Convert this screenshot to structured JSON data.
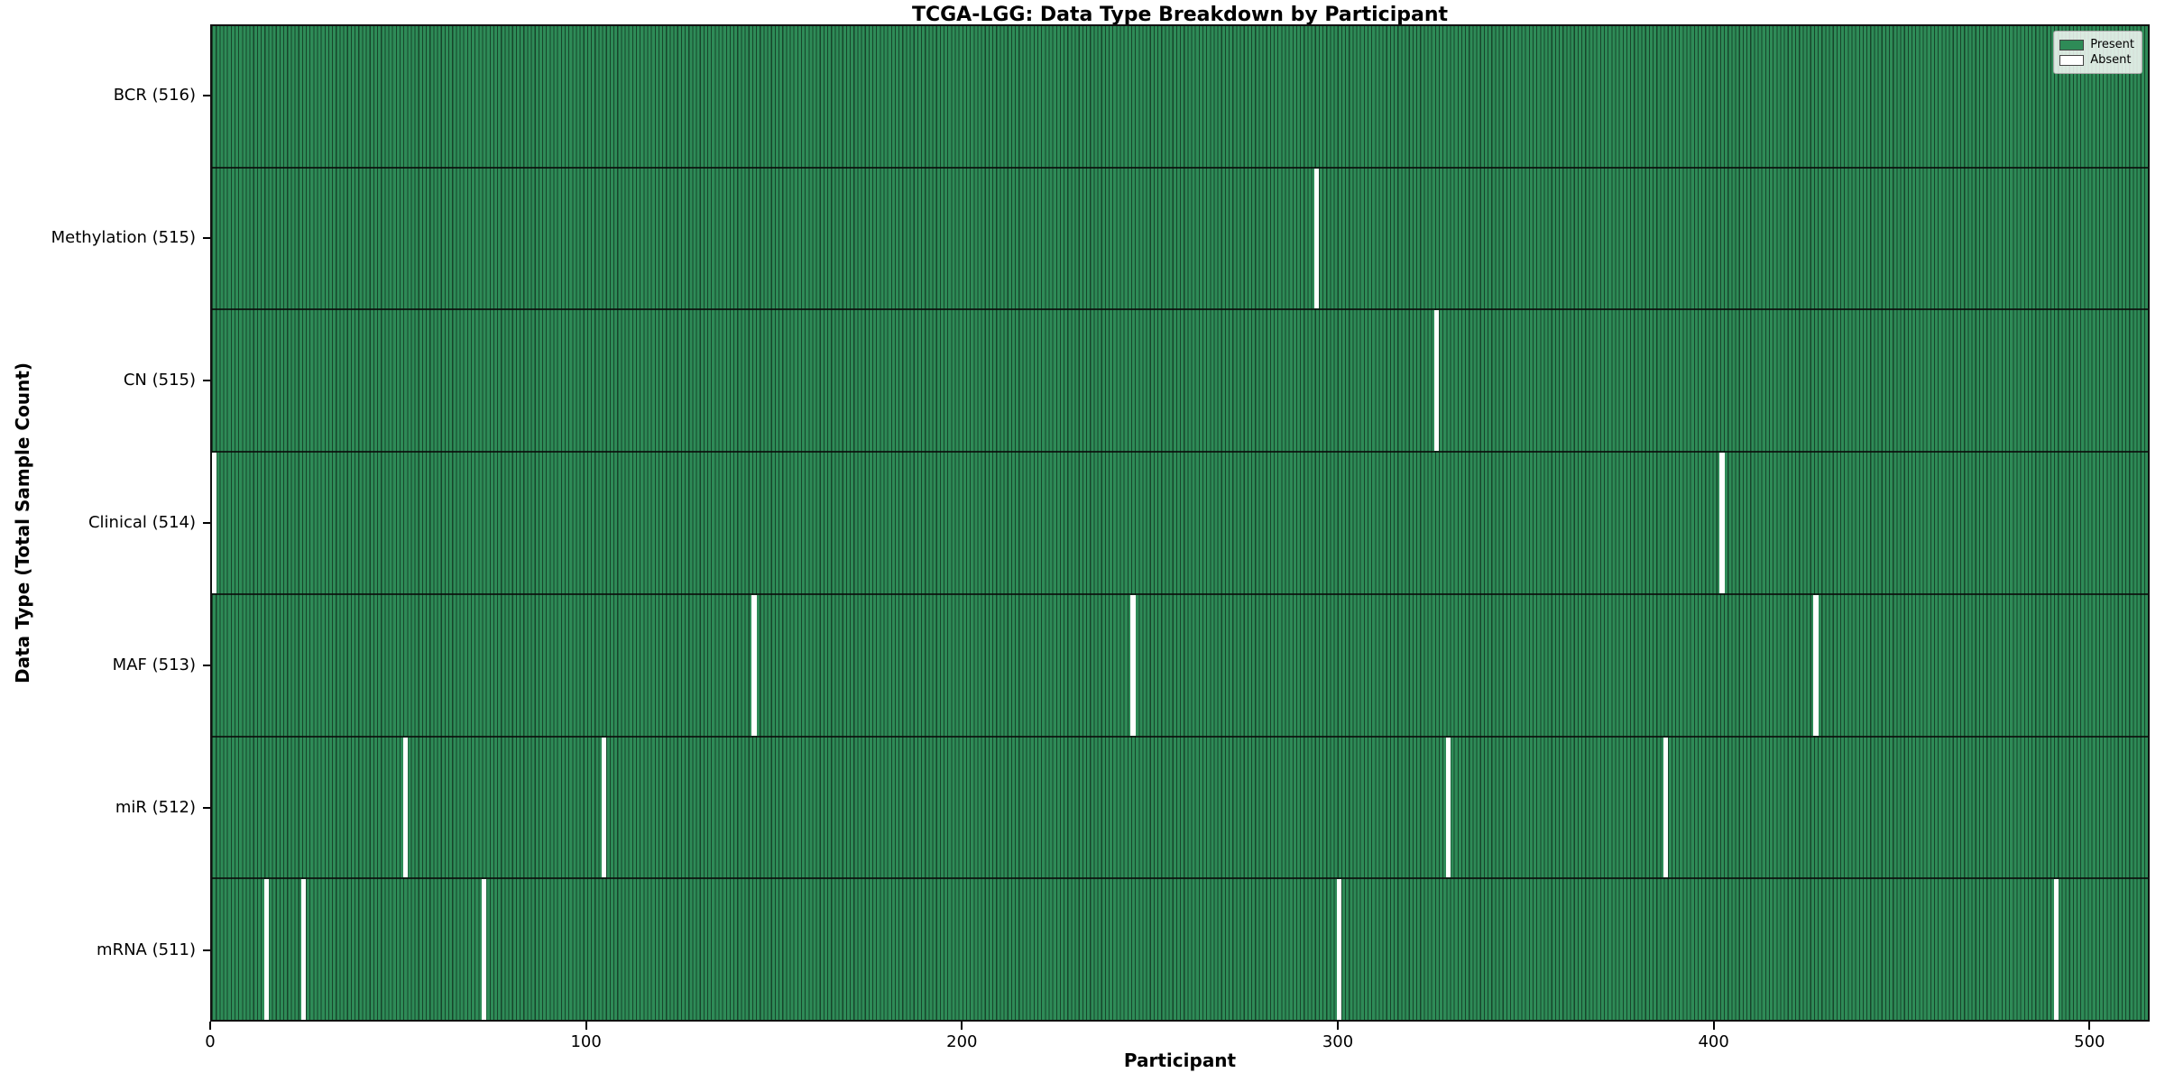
{
  "title": "TCGA-LGG: Data Type Breakdown by Participant",
  "colors": {
    "present": "#2e8b57",
    "absent": "#ffffff",
    "column_edge": "rgba(0,0,0,0.5)",
    "row_divider": "rgba(10,10,10,0.8)",
    "frame": "#111111"
  },
  "chart_data": {
    "type": "heatmap",
    "title": "TCGA-LGG: Data Type Breakdown by Participant",
    "xlabel": "Participant",
    "ylabel": "Data Type (Total Sample Count)",
    "n_participants": 516,
    "xlim": [
      0,
      516
    ],
    "x_ticks": [
      0,
      100,
      200,
      300,
      400,
      500
    ],
    "grid": false,
    "legend_position": "upper right",
    "legend": [
      {
        "label": "Present",
        "color": "#2e8b57"
      },
      {
        "label": "Absent",
        "color": "#ffffff"
      }
    ],
    "rows": [
      {
        "label": "BCR (516)",
        "data_type": "BCR",
        "total": 516,
        "absent_participants": []
      },
      {
        "label": "Methylation (515)",
        "data_type": "Methylation",
        "total": 515,
        "absent_participants": [
          294
        ]
      },
      {
        "label": "CN (515)",
        "data_type": "CN",
        "total": 515,
        "absent_participants": [
          326
        ]
      },
      {
        "label": "Clinical (514)",
        "data_type": "Clinical",
        "total": 514,
        "absent_participants": [
          0,
          402
        ]
      },
      {
        "label": "MAF (513)",
        "data_type": "MAF",
        "total": 513,
        "absent_participants": [
          144,
          245,
          427
        ]
      },
      {
        "label": "miR (512)",
        "data_type": "miR",
        "total": 512,
        "absent_participants": [
          51,
          104,
          329,
          387
        ]
      },
      {
        "label": "mRNA (511)",
        "data_type": "mRNA",
        "total": 511,
        "absent_participants": [
          14,
          24,
          72,
          300,
          491
        ]
      }
    ]
  }
}
